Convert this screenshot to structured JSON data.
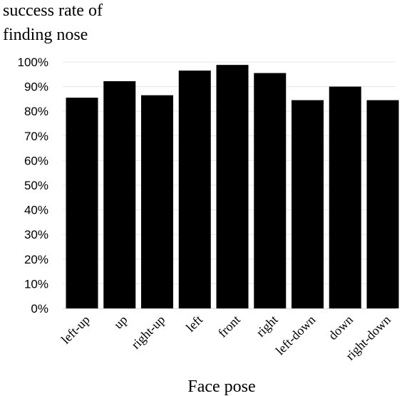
{
  "chart_data": {
    "type": "bar",
    "ylabel_lines": [
      "success rate of",
      "finding nose"
    ],
    "xlabel": "Face pose",
    "categories": [
      "left-up",
      "up",
      "right-up",
      "left",
      "front",
      "right",
      "left-down",
      "down",
      "right-down"
    ],
    "values": [
      85.5,
      92.2,
      86.5,
      96.5,
      98.8,
      95.5,
      84.5,
      90.0,
      84.5
    ],
    "ylim": [
      0,
      100
    ],
    "yticks": [
      0,
      10,
      20,
      30,
      40,
      50,
      60,
      70,
      80,
      90,
      100
    ],
    "ytick_labels": [
      "0%",
      "10%",
      "20%",
      "30%",
      "40%",
      "50%",
      "60%",
      "70%",
      "80%",
      "90%",
      "100%"
    ],
    "grid": true,
    "bar_color": "#000000",
    "grid_color": "#e6e6e6"
  }
}
